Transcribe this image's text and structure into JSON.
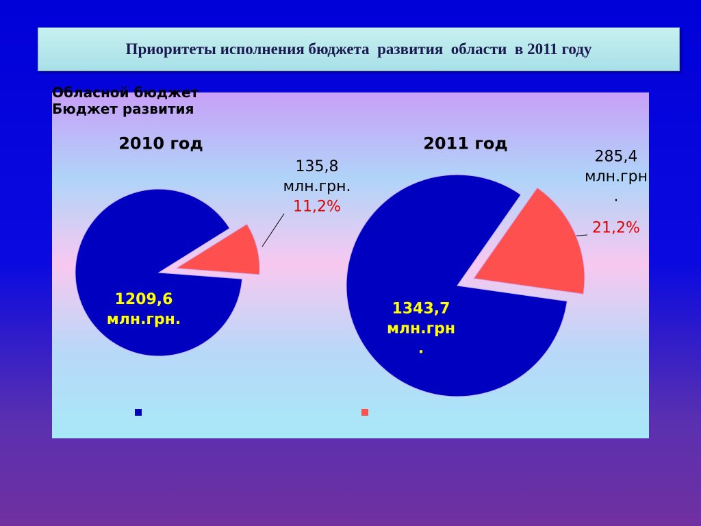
{
  "slide_title": "Приоритеты исполнения бюджета  развития  области  в 2011 году",
  "chart_data": [
    {
      "type": "pie",
      "title": "2010 год",
      "categories": [
        "Обласной бюджет",
        "Бюджет развития"
      ],
      "values": [
        1209.6,
        135.8
      ],
      "value_labels": [
        "1209,6\nмлн.грн.",
        "135,8\nмлн.грн."
      ],
      "shares": [
        null,
        11.2
      ],
      "share_labels": [
        null,
        "11,2%"
      ],
      "colors": [
        "#0000c0",
        "#ff5050"
      ],
      "legend": "bottom"
    },
    {
      "type": "pie",
      "title": "2011 год",
      "categories": [
        "Обласной бюджет",
        "Бюджет развития"
      ],
      "values": [
        1343.7,
        285.4
      ],
      "value_labels": [
        "1343,7\nмлн.грн\n.",
        "285,4\nмлн.грн\n."
      ],
      "shares": [
        null,
        21.2
      ],
      "share_labels": [
        null,
        "21,2%"
      ],
      "colors": [
        "#0000c0",
        "#ff5050"
      ]
    }
  ]
}
